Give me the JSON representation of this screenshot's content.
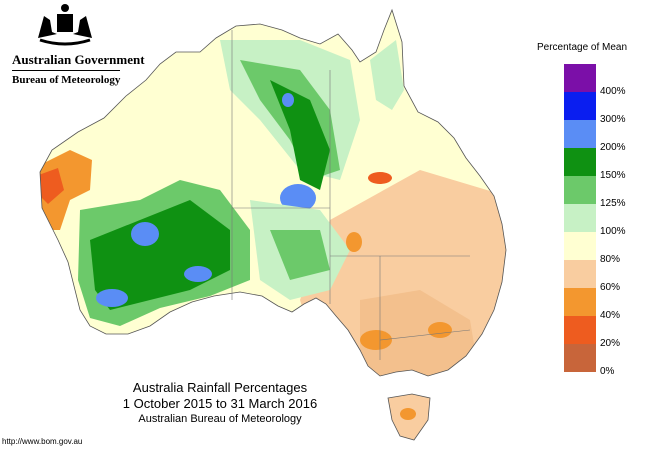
{
  "header": {
    "gov_title": "Australian Government",
    "bureau": "Bureau of Meteorology"
  },
  "caption": {
    "line1": "Australia Rainfall Percentages",
    "line2": "1 October 2015 to 31 March 2016",
    "line3": "Australian Bureau of Meteorology"
  },
  "footer": {
    "url": "http://www.bom.gov.au"
  },
  "legend": {
    "title": "Percentage of Mean",
    "colors": [
      "#7b0fa8",
      "#0a1ef0",
      "#5a8df5",
      "#0f9112",
      "#6cc96a",
      "#c7f1c5",
      "#ffffd2",
      "#f9cda0",
      "#f3972f",
      "#ee5c1f",
      "#c8653a"
    ],
    "labels": [
      "400%",
      "300%",
      "200%",
      "150%",
      "125%",
      "100%",
      "80%",
      "60%",
      "40%",
      "20%",
      "0%"
    ]
  },
  "map_colors": {
    "deep_green": "#0f9112",
    "mid_green": "#6cc96a",
    "light_green": "#c7f1c5",
    "cream": "#ffffd2",
    "peach": "#f9cda0",
    "orange": "#f3972f",
    "red_orange": "#ee5c1f",
    "light_blue": "#5a8df5"
  }
}
